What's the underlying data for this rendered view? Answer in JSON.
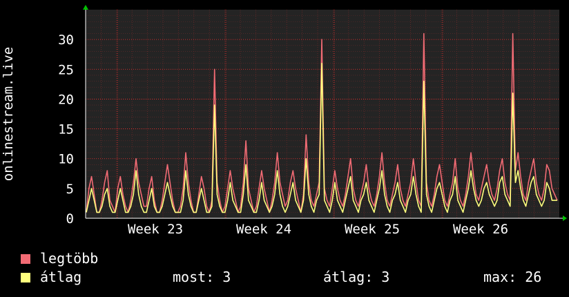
{
  "colors": {
    "background": "#000000",
    "canvas": "#242424",
    "max_series": "#f26b74",
    "avg_series": "#ffff7d",
    "grid": "#ff2a2a",
    "axis_arrow": "#00c000"
  },
  "legend": {
    "max_label": "legtöbb",
    "avg_label": "átlag"
  },
  "stats": {
    "current": "most: 3",
    "average": "átlag: 3",
    "max": "max: 26"
  },
  "chart_data": {
    "type": "area",
    "ylabel": "onlinestream.live",
    "ylim": [
      0,
      35
    ],
    "yticks": [
      0,
      5,
      10,
      15,
      20,
      25,
      30
    ],
    "week_labels": [
      "Week 23",
      "Week 24",
      "Week 25",
      "Week 26"
    ],
    "grid": true,
    "series": [
      {
        "name": "legtöbb",
        "values": [
          1,
          5,
          7,
          4,
          1,
          1,
          3,
          6,
          8,
          3,
          2,
          1,
          5,
          7,
          4,
          2,
          1,
          3,
          6,
          10,
          6,
          4,
          2,
          2,
          5,
          7,
          3,
          1,
          1,
          3,
          6,
          9,
          6,
          3,
          1,
          1,
          2,
          5,
          11,
          6,
          3,
          1,
          1,
          4,
          7,
          5,
          2,
          1,
          3,
          25,
          6,
          3,
          1,
          2,
          5,
          8,
          5,
          3,
          1,
          2,
          6,
          13,
          5,
          3,
          1,
          2,
          5,
          8,
          5,
          3,
          1,
          3,
          6,
          11,
          6,
          4,
          2,
          3,
          6,
          8,
          5,
          3,
          1,
          4,
          14,
          6,
          3,
          2,
          4,
          6,
          30,
          5,
          3,
          2,
          5,
          8,
          5,
          3,
          2,
          4,
          7,
          10,
          5,
          3,
          2,
          4,
          6,
          9,
          5,
          3,
          2,
          4,
          7,
          11,
          6,
          3,
          2,
          4,
          6,
          9,
          5,
          3,
          2,
          4,
          6,
          10,
          6,
          3,
          2,
          31,
          6,
          3,
          2,
          4,
          7,
          9,
          6,
          3,
          2,
          4,
          6,
          10,
          5,
          3,
          2,
          4,
          7,
          11,
          7,
          4,
          3,
          5,
          7,
          9,
          6,
          4,
          3,
          5,
          8,
          10,
          6,
          4,
          3,
          31,
          8,
          11,
          7,
          4,
          3,
          6,
          8,
          10,
          6,
          4,
          3,
          5,
          9,
          8,
          5,
          4,
          3
        ]
      },
      {
        "name": "átlag",
        "values": [
          1,
          3,
          5,
          3,
          1,
          1,
          2,
          4,
          5,
          2,
          1,
          1,
          3,
          5,
          3,
          1,
          1,
          2,
          4,
          8,
          4,
          2,
          1,
          1,
          3,
          5,
          2,
          1,
          1,
          2,
          4,
          6,
          4,
          2,
          1,
          1,
          1,
          3,
          8,
          4,
          2,
          1,
          1,
          3,
          5,
          3,
          1,
          1,
          2,
          19,
          4,
          2,
          1,
          1,
          3,
          6,
          3,
          2,
          1,
          1,
          4,
          9,
          3,
          2,
          1,
          1,
          3,
          6,
          3,
          2,
          1,
          2,
          4,
          8,
          4,
          2,
          1,
          2,
          4,
          6,
          3,
          2,
          1,
          3,
          10,
          4,
          2,
          1,
          3,
          4,
          26,
          3,
          2,
          1,
          3,
          6,
          3,
          2,
          1,
          3,
          5,
          7,
          3,
          2,
          1,
          3,
          4,
          6,
          3,
          2,
          1,
          3,
          5,
          8,
          4,
          2,
          1,
          3,
          4,
          6,
          3,
          2,
          1,
          3,
          4,
          7,
          4,
          2,
          1,
          23,
          4,
          2,
          1,
          3,
          5,
          6,
          4,
          2,
          1,
          3,
          4,
          7,
          3,
          2,
          1,
          3,
          5,
          8,
          5,
          3,
          2,
          3,
          5,
          6,
          4,
          3,
          2,
          3,
          6,
          7,
          4,
          3,
          2,
          21,
          6,
          8,
          5,
          3,
          2,
          4,
          6,
          7,
          4,
          3,
          2,
          3,
          6,
          5,
          3,
          3,
          3
        ]
      }
    ]
  }
}
